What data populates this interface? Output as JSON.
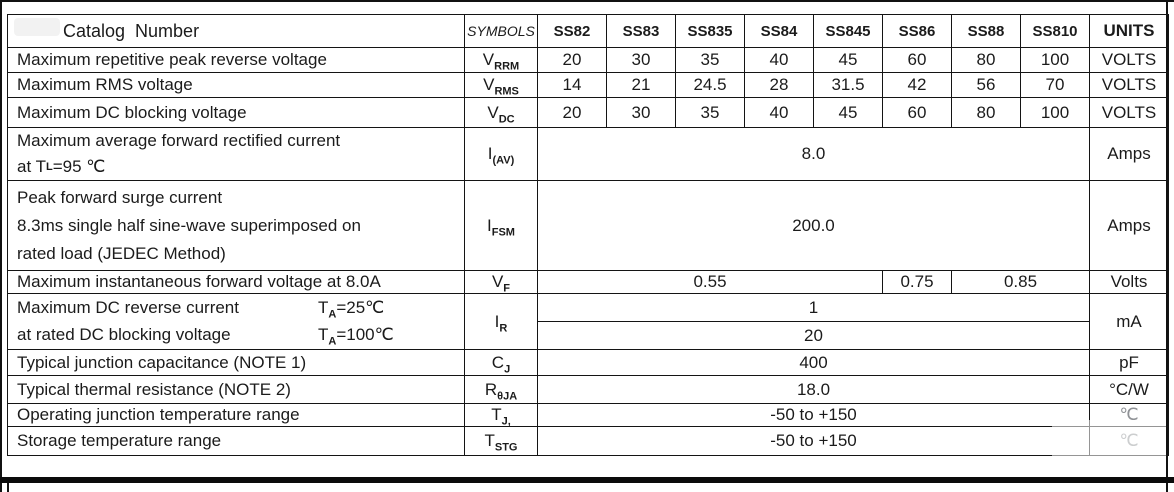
{
  "colors": {
    "border": "#141414",
    "text": "#1b1b1b",
    "faded_unit": "#8f9296"
  },
  "header": {
    "catalog": "Catalog  Number",
    "symbols": "SYMBOLS",
    "devices": [
      "SS82",
      "SS83",
      "SS835",
      "SS84",
      "SS845",
      "SS86",
      "SS88",
      "SS810"
    ],
    "units": "UNITS"
  },
  "rows": {
    "vrrm": {
      "desc": "Maximum repetitive peak reverse voltage",
      "symbol": "V~RRM~",
      "values": [
        "20",
        "30",
        "35",
        "40",
        "45",
        "60",
        "80",
        "100"
      ],
      "unit": "VOLTS"
    },
    "vrms": {
      "desc": "Maximum RMS voltage",
      "symbol": "V~RMS~",
      "values": [
        "14",
        "21",
        "24.5",
        "28",
        "31.5",
        "42",
        "56",
        "70"
      ],
      "unit": "VOLTS"
    },
    "vdc": {
      "desc": "Maximum DC blocking voltage",
      "symbol": "V~DC~",
      "values": [
        "20",
        "30",
        "35",
        "40",
        "45",
        "60",
        "80",
        "100"
      ],
      "unit": "VOLTS"
    },
    "iav": {
      "desc_line1": "Maximum average forward rectified current",
      "desc_line2": "at T~L~ =95 ℃",
      "symbol": "I~(AV)~",
      "value": "8.0",
      "unit": "Amps"
    },
    "ifsm": {
      "desc_line1": "Peak forward surge current",
      "desc_line2": "8.3ms single half sine-wave superimposed on",
      "desc_line3": "rated load (JEDEC Method)",
      "symbol": "I~FSM~",
      "value": "200.0",
      "unit": "Amps"
    },
    "vf": {
      "desc": "Maximum instantaneous forward voltage at 8.0A",
      "symbol": "V~F~",
      "value_low": "0.55",
      "value_mid": "0.75",
      "value_high": "0.85",
      "unit": "Volts"
    },
    "ir": {
      "desc_line1": "Maximum DC reverse current",
      "cond1": "T~A~=25℃",
      "desc_line2": "at rated DC blocking voltage",
      "cond2": "T~A~=100℃",
      "symbol": "I~R~",
      "value_25": "1",
      "value_100": "20",
      "unit": "mA"
    },
    "cj": {
      "desc": "Typical junction capacitance (NOTE 1)",
      "symbol": "C~J~",
      "value": "400",
      "unit": "pF"
    },
    "rthja": {
      "desc": "Typical thermal resistance (NOTE 2)",
      "symbol": "R~θJA~",
      "value": "18.0",
      "unit": "°C/W"
    },
    "tj": {
      "desc": "Operating junction temperature range",
      "symbol": "T~J,~",
      "value": "-50 to +150",
      "unit": "℃"
    },
    "tstg": {
      "desc": "Storage temperature range",
      "symbol": "T~STG~",
      "value": "-50 to +150",
      "unit": "℃"
    }
  }
}
